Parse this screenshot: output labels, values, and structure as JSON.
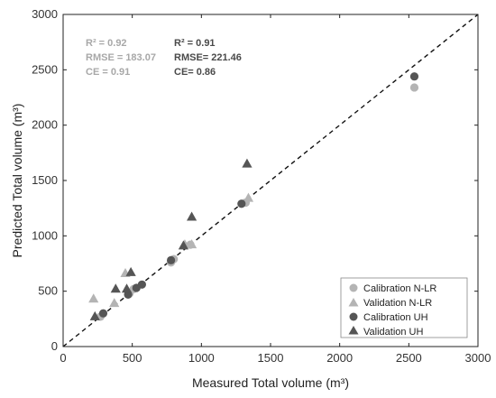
{
  "chart_data": {
    "type": "scatter",
    "xlabel": "Measured Total volume (m³)",
    "ylabel": "Predicted Total volume (m³)",
    "xlim": [
      0,
      3000
    ],
    "ylim": [
      0,
      3000
    ],
    "xticks": [
      0,
      500,
      1000,
      1500,
      2000,
      2500,
      3000
    ],
    "yticks": [
      0,
      500,
      1000,
      1500,
      2000,
      2500,
      3000
    ],
    "grid": false,
    "legend_position": "bottom-right",
    "reference_line": "1:1 dashed",
    "series": [
      {
        "name": "Calibration N-LR",
        "marker": "circle",
        "color": "#b4b4b4",
        "points": [
          [
            270,
            270
          ],
          [
            480,
            480
          ],
          [
            510,
            520
          ],
          [
            780,
            760
          ],
          [
            800,
            790
          ],
          [
            920,
            920
          ],
          [
            1320,
            1300
          ],
          [
            2540,
            2340
          ]
        ]
      },
      {
        "name": "Validation N-LR",
        "marker": "triangle",
        "color": "#b4b4b4",
        "points": [
          [
            220,
            430
          ],
          [
            370,
            390
          ],
          [
            450,
            660
          ],
          [
            880,
            920
          ],
          [
            930,
            920
          ],
          [
            1340,
            1340
          ]
        ]
      },
      {
        "name": "Calibration UH",
        "marker": "circle",
        "color": "#555555",
        "points": [
          [
            290,
            300
          ],
          [
            470,
            470
          ],
          [
            530,
            530
          ],
          [
            570,
            560
          ],
          [
            780,
            780
          ],
          [
            1290,
            1290
          ],
          [
            2540,
            2440
          ]
        ]
      },
      {
        "name": "Validation UH",
        "marker": "triangle",
        "color": "#555555",
        "points": [
          [
            230,
            270
          ],
          [
            380,
            520
          ],
          [
            460,
            520
          ],
          [
            490,
            670
          ],
          [
            870,
            910
          ],
          [
            930,
            1170
          ],
          [
            1330,
            1650
          ]
        ]
      }
    ],
    "annotations": {
      "n_lr": {
        "r2": "R² = 0.92",
        "rmse": "RMSE = 183.07",
        "ce": "CE = 0.91"
      },
      "uh": {
        "r2": "R² = 0.91",
        "rmse": "RMSE= 221.46",
        "ce": "CE= 0.86"
      }
    }
  }
}
